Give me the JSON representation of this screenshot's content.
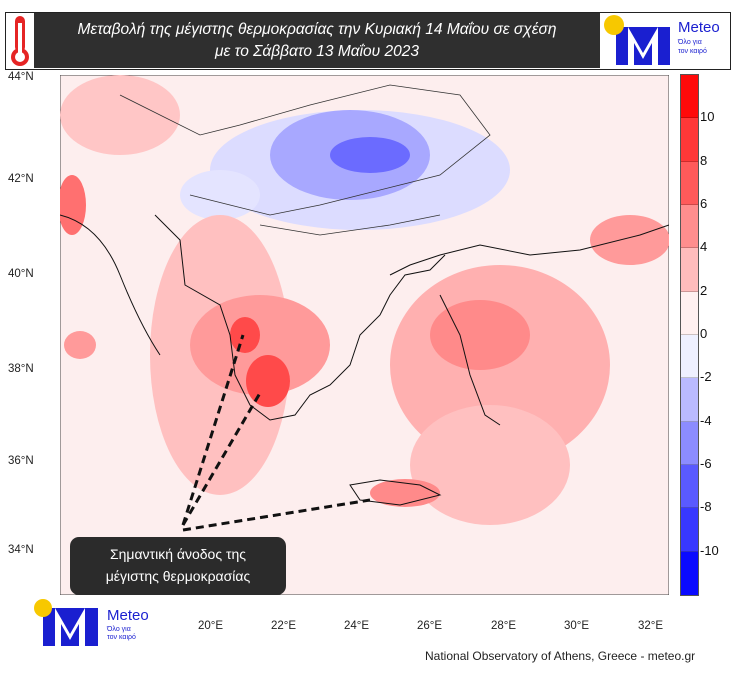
{
  "header": {
    "title_line1": "Μεταβολή της μέγιστης θερμοκρασίας την Κυριακή 14 Μαΐου σε σχέση",
    "title_line2": "με το Σάββατο 13 Μαΐου 2023",
    "icon": "thermometer-icon"
  },
  "logo": {
    "name": "Meteo",
    "tagline1": "Όλο για",
    "tagline2": "τον καιρό",
    "brand_color": "#1a1fd0",
    "sun_color": "#f7c800"
  },
  "map": {
    "lat_ticks": [
      "44°N",
      "42°N",
      "40°N",
      "38°N",
      "36°N",
      "34°N"
    ],
    "lon_ticks": [
      "20°E",
      "22°E",
      "24°E",
      "26°E",
      "28°E",
      "30°E",
      "32°E"
    ],
    "background_color": "#fdeeee"
  },
  "colorbar": {
    "labels": [
      "10",
      "8",
      "6",
      "4",
      "2",
      "0",
      "-2",
      "-4",
      "-6",
      "-8",
      "-10"
    ],
    "colors": [
      "#ff0a0a",
      "#ff3838",
      "#ff5a5a",
      "#ff8e8e",
      "#ffbcbc",
      "#fff0f0",
      "#eef0ff",
      "#babaff",
      "#8c8cff",
      "#5a5aff",
      "#3838ff",
      "#0a0aff"
    ]
  },
  "callout": {
    "line1": "Σημαντική άνοδος της",
    "line2": "μέγιστης  θερμοκρασίας"
  },
  "credit": "National Observatory of Athens, Greece - meteo.gr"
}
